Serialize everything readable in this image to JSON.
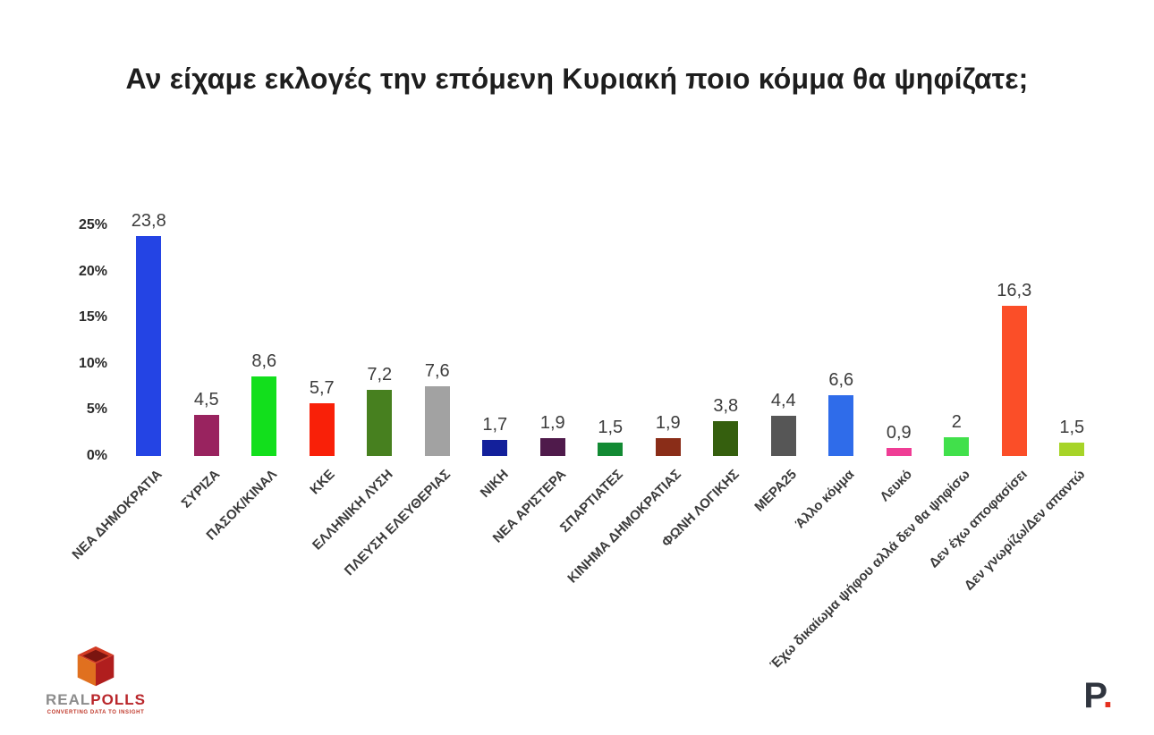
{
  "title": "Αν είχαμε εκλογές την επόμενη Κυριακή ποιο κόμμα θα ψηφίζατε;",
  "chart_data": {
    "type": "bar",
    "title": "Αν είχαμε εκλογές την επόμενη Κυριακή ποιο κόμμα θα ψηφίζατε;",
    "xlabel": "",
    "ylabel": "",
    "ylim": [
      0,
      25
    ],
    "grid": false,
    "legend": false,
    "yticks": [
      {
        "value": 0,
        "label": "0%"
      },
      {
        "value": 5,
        "label": "5%"
      },
      {
        "value": 10,
        "label": "10%"
      },
      {
        "value": 15,
        "label": "15%"
      },
      {
        "value": 20,
        "label": "20%"
      },
      {
        "value": 25,
        "label": "25%"
      }
    ],
    "bars": [
      {
        "category": "ΝΕΑ ΔΗΜΟΚΡΑΤΙΑ",
        "value": 23.8,
        "label": "23,8",
        "color": "#2444e4"
      },
      {
        "category": "ΣΥΡΙΖΑ",
        "value": 4.5,
        "label": "4,5",
        "color": "#99235f"
      },
      {
        "category": "ΠΑΣΟΚ/ΚΙΝΑΛ",
        "value": 8.6,
        "label": "8,6",
        "color": "#12df1c"
      },
      {
        "category": "ΚΚΕ",
        "value": 5.7,
        "label": "5,7",
        "color": "#f92008"
      },
      {
        "category": "ΕΛΛΗΝΙΚΗ ΛΥΣΗ",
        "value": 7.2,
        "label": "7,2",
        "color": "#47801f"
      },
      {
        "category": "ΠΛΕΥΣΗ ΕΛΕΥΘΕΡΙΑΣ",
        "value": 7.6,
        "label": "7,6",
        "color": "#a2a2a2"
      },
      {
        "category": "ΝΙΚΗ",
        "value": 1.7,
        "label": "1,7",
        "color": "#13209b"
      },
      {
        "category": "ΝΕΑ ΑΡΙΣΤΕΡΑ",
        "value": 1.9,
        "label": "1,9",
        "color": "#4f1a4b"
      },
      {
        "category": "ΣΠΑΡΤΙΑΤΕΣ",
        "value": 1.5,
        "label": "1,5",
        "color": "#128a33"
      },
      {
        "category": "ΚΙΝΗΜΑ ΔΗΜΟΚΡΑΤΙΑΣ",
        "value": 1.9,
        "label": "1,9",
        "color": "#8a2d18"
      },
      {
        "category": "ΦΩΝΗ ΛΟΓΙΚΗΣ",
        "value": 3.8,
        "label": "3,8",
        "color": "#355f0e"
      },
      {
        "category": "ΜΕΡΑ25",
        "value": 4.4,
        "label": "4,4",
        "color": "#565656"
      },
      {
        "category": "Άλλο κόμμα",
        "value": 6.6,
        "label": "6,6",
        "color": "#2f6cea"
      },
      {
        "category": "Λευκό",
        "value": 0.9,
        "label": "0,9",
        "color": "#ef3d95"
      },
      {
        "category": "Έχω δικαίωμα ψήφου αλλά δεν θα ψηφίσω",
        "value": 2,
        "label": "2",
        "color": "#41e04b"
      },
      {
        "category": "Δεν έχω αποφασίσει",
        "value": 16.3,
        "label": "16,3",
        "color": "#fb4e28"
      },
      {
        "category": "Δεν γνωρίζω/Δεν απαντώ",
        "value": 1.5,
        "label": "1,5",
        "color": "#a7d428"
      }
    ]
  },
  "footer": {
    "realpolls": {
      "word_gray": "REAL",
      "word_red": "POLLS",
      "tagline": "CONVERTING DATA TO INSIGHT"
    },
    "p_logo": {
      "letter": "P",
      "dot": "."
    }
  }
}
